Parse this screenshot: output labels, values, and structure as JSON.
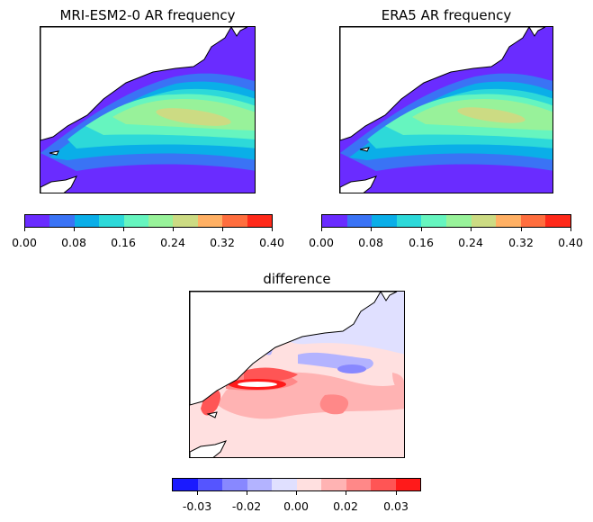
{
  "chart_data": [
    {
      "type": "heatmap",
      "title": "MRI-ESM2-0 AR frequency",
      "colorbar": {
        "levels": [
          0.0,
          0.04,
          0.08,
          0.12,
          0.16,
          0.2,
          0.24,
          0.28,
          0.32,
          0.36,
          0.4
        ],
        "colors": [
          "#6a2cff",
          "#3a73f5",
          "#0aaee8",
          "#2dd9d9",
          "#66f5bf",
          "#98f29a",
          "#ccdb83",
          "#ffb064",
          "#ff6e3e",
          "#ff2a1a"
        ],
        "tick_labels": [
          "0.00",
          "0.08",
          "0.16",
          "0.24",
          "0.32",
          "0.40"
        ],
        "range": [
          0.0,
          0.4
        ]
      },
      "max_value_region": 0.24
    },
    {
      "type": "heatmap",
      "title": "ERA5 AR frequency",
      "colorbar": {
        "levels": [
          0.0,
          0.04,
          0.08,
          0.12,
          0.16,
          0.2,
          0.24,
          0.28,
          0.32,
          0.36,
          0.4
        ],
        "colors": [
          "#6a2cff",
          "#3a73f5",
          "#0aaee8",
          "#2dd9d9",
          "#66f5bf",
          "#98f29a",
          "#ccdb83",
          "#ffb064",
          "#ff6e3e",
          "#ff2a1a"
        ],
        "tick_labels": [
          "0.00",
          "0.08",
          "0.16",
          "0.24",
          "0.32",
          "0.40"
        ],
        "range": [
          0.0,
          0.4
        ]
      },
      "max_value_region": 0.24
    },
    {
      "type": "heatmap",
      "title": "difference",
      "colorbar": {
        "levels": [
          -0.035,
          -0.028,
          -0.021,
          -0.014,
          -0.007,
          0.0,
          0.007,
          0.014,
          0.021,
          0.028,
          0.035
        ],
        "colors": [
          "#1a1aff",
          "#5555ff",
          "#8888ff",
          "#b3b3ff",
          "#e0e0ff",
          "#ffe0e0",
          "#ffb3b3",
          "#ff8888",
          "#ff5555",
          "#ff1a1a"
        ],
        "tick_labels": [
          "-0.03",
          "-0.02",
          "0.00",
          "0.02",
          "0.03"
        ],
        "range": [
          -0.035,
          0.035
        ]
      }
    }
  ]
}
